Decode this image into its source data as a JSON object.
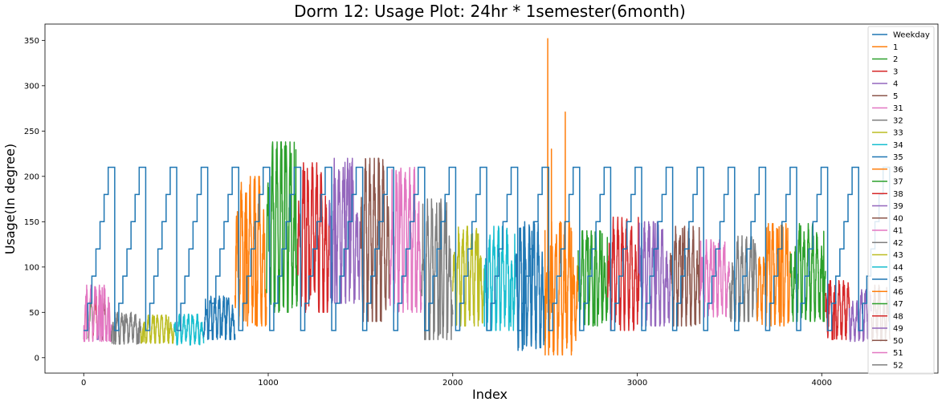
{
  "chart_data": {
    "type": "line",
    "title": "Dorm 12: Usage Plot: 24hr * 1semester(6month)",
    "xlabel": "Index",
    "ylabel": "Usage(In degree)",
    "xlim": [
      -210,
      4630
    ],
    "ylim": [
      -17,
      368
    ],
    "xticks": [
      0,
      1000,
      2000,
      3000,
      4000
    ],
    "yticks": [
      0,
      50,
      100,
      150,
      200,
      250,
      300,
      350
    ],
    "grid": false,
    "legend_position": "right",
    "step_series": {
      "name": "Weekday",
      "color": "#1f77b4",
      "levels": [
        30,
        60,
        90,
        120,
        150,
        180,
        210
      ],
      "cycle_start": 0,
      "cycle_length": 168,
      "cycle_count": 27,
      "x_max": 4368
    },
    "series": [
      {
        "name": "1",
        "color": "#ff7f0e",
        "x_range": [
          0,
          24
        ],
        "y_range": [
          20,
          65
        ],
        "peak": null
      },
      {
        "name": "2",
        "color": "#2ca02c",
        "x_range": [
          24,
          48
        ],
        "y_range": [
          20,
          70
        ],
        "peak": null
      },
      {
        "name": "3",
        "color": "#d62728",
        "x_range": [
          48,
          72
        ],
        "y_range": [
          20,
          70
        ],
        "peak": null
      },
      {
        "name": "4",
        "color": "#9467bd",
        "x_range": [
          72,
          96
        ],
        "y_range": [
          20,
          70
        ],
        "peak": null
      },
      {
        "name": "5",
        "color": "#8c564b",
        "x_range": [
          96,
          120
        ],
        "y_range": [
          20,
          65
        ],
        "peak": null
      },
      {
        "name": "31",
        "color": "#e377c2",
        "x_range": [
          0,
          150
        ],
        "y_range": [
          18,
          80
        ],
        "peak": null
      },
      {
        "name": "32",
        "color": "#7f7f7f",
        "x_range": [
          150,
          310
        ],
        "y_range": [
          15,
          50
        ],
        "peak": null
      },
      {
        "name": "33",
        "color": "#bcbd22",
        "x_range": [
          310,
          490
        ],
        "y_range": [
          16,
          47
        ],
        "peak": null
      },
      {
        "name": "34",
        "color": "#17becf",
        "x_range": [
          490,
          650
        ],
        "y_range": [
          14,
          48
        ],
        "peak": null
      },
      {
        "name": "35",
        "color": "#1f77b4",
        "x_range": [
          650,
          820
        ],
        "y_range": [
          20,
          68
        ],
        "peak": null
      },
      {
        "name": "36",
        "color": "#ff7f0e",
        "x_range": [
          820,
          990
        ],
        "y_range": [
          35,
          200
        ],
        "peak": null
      },
      {
        "name": "37",
        "color": "#2ca02c",
        "x_range": [
          990,
          1160
        ],
        "y_range": [
          50,
          238
        ],
        "peak": null
      },
      {
        "name": "38",
        "color": "#d62728",
        "x_range": [
          1160,
          1330
        ],
        "y_range": [
          50,
          215
        ],
        "peak": null
      },
      {
        "name": "39",
        "color": "#9467bd",
        "x_range": [
          1330,
          1500
        ],
        "y_range": [
          60,
          220
        ],
        "peak": null
      },
      {
        "name": "40",
        "color": "#8c564b",
        "x_range": [
          1500,
          1660
        ],
        "y_range": [
          40,
          220
        ],
        "peak": null
      },
      {
        "name": "41",
        "color": "#e377c2",
        "x_range": [
          1660,
          1830
        ],
        "y_range": [
          50,
          210
        ],
        "peak": null
      },
      {
        "name": "42",
        "color": "#7f7f7f",
        "x_range": [
          1830,
          2000
        ],
        "y_range": [
          20,
          175
        ],
        "peak": null
      },
      {
        "name": "43",
        "color": "#bcbd22",
        "x_range": [
          2000,
          2170
        ],
        "y_range": [
          35,
          145
        ],
        "peak": null
      },
      {
        "name": "44",
        "color": "#17becf",
        "x_range": [
          2170,
          2340
        ],
        "y_range": [
          30,
          145
        ],
        "peak": null
      },
      {
        "name": "45",
        "color": "#1f77b4",
        "x_range": [
          2340,
          2500
        ],
        "y_range": [
          8,
          150
        ],
        "peak": null
      },
      {
        "name": "46",
        "color": "#ff7f0e",
        "x_range": [
          2500,
          2680
        ],
        "y_range": [
          3,
          150
        ],
        "peak": [
          [
            2515,
            352
          ],
          [
            2535,
            230
          ],
          [
            2610,
            271
          ]
        ]
      },
      {
        "name": "47",
        "color": "#2ca02c",
        "x_range": [
          2680,
          2840
        ],
        "y_range": [
          35,
          140
        ],
        "peak": null
      },
      {
        "name": "48",
        "color": "#d62728",
        "x_range": [
          2840,
          3010
        ],
        "y_range": [
          30,
          155
        ],
        "peak": null
      },
      {
        "name": "49",
        "color": "#9467bd",
        "x_range": [
          3010,
          3180
        ],
        "y_range": [
          35,
          150
        ],
        "peak": null
      },
      {
        "name": "50",
        "color": "#8c564b",
        "x_range": [
          3180,
          3340
        ],
        "y_range": [
          35,
          145
        ],
        "peak": null
      },
      {
        "name": "51",
        "color": "#e377c2",
        "x_range": [
          3340,
          3500
        ],
        "y_range": [
          45,
          130
        ],
        "peak": null
      },
      {
        "name": "52",
        "color": "#7f7f7f",
        "x_range": [
          3500,
          3650
        ],
        "y_range": [
          40,
          135
        ],
        "peak": null
      },
      {
        "name": "",
        "color": "#ff7f0e",
        "x_range": [
          3650,
          3830
        ],
        "y_range": [
          35,
          148
        ],
        "peak": null
      },
      {
        "name": "",
        "color": "#2ca02c",
        "x_range": [
          3830,
          4020
        ],
        "y_range": [
          40,
          148
        ],
        "peak": null
      },
      {
        "name": "",
        "color": "#d62728",
        "x_range": [
          4020,
          4150
        ],
        "y_range": [
          20,
          85
        ],
        "peak": null
      },
      {
        "name": "",
        "color": "#9467bd",
        "x_range": [
          4150,
          4270
        ],
        "y_range": [
          18,
          75
        ],
        "peak": null
      },
      {
        "name": "",
        "color": "#8c564b",
        "x_range": [
          4270,
          4370
        ],
        "y_range": [
          18,
          80
        ],
        "peak": null
      }
    ],
    "legend": [
      "Weekday",
      "1",
      "2",
      "3",
      "4",
      "5",
      "31",
      "32",
      "33",
      "34",
      "35",
      "36",
      "37",
      "38",
      "39",
      "40",
      "41",
      "42",
      "43",
      "44",
      "45",
      "46",
      "47",
      "48",
      "49",
      "50",
      "51",
      "52"
    ]
  }
}
